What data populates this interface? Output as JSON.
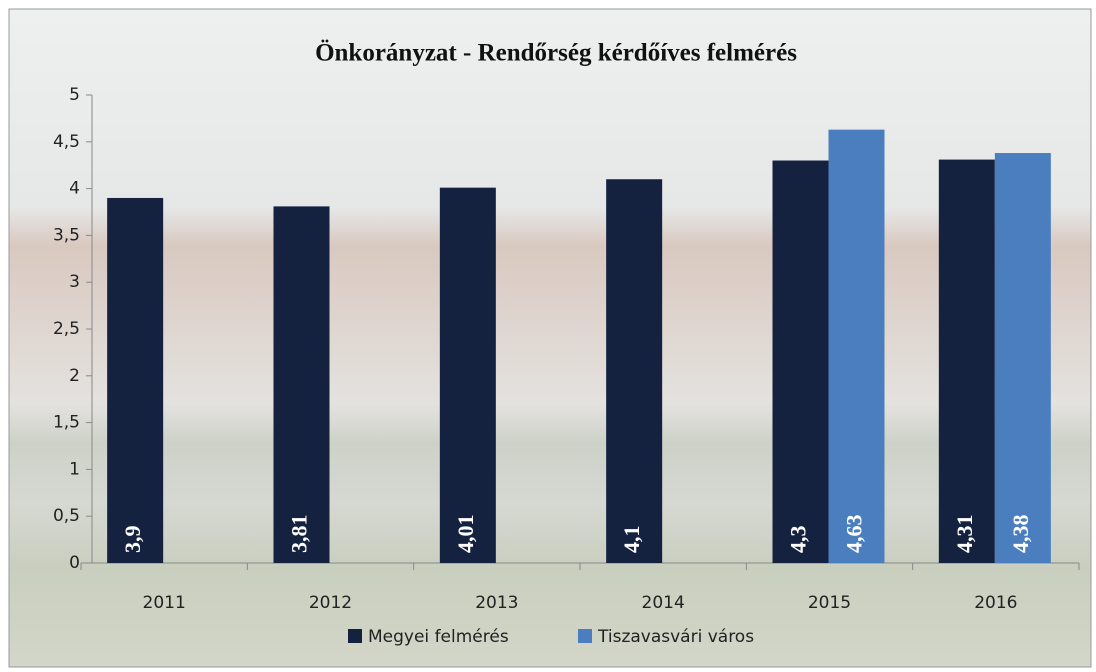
{
  "chart_data": {
    "type": "bar",
    "title": "Önkorányzat - Rendőrség kérdőíves felmérés",
    "categories": [
      "2011",
      "2012",
      "2013",
      "2014",
      "2015",
      "2016"
    ],
    "series": [
      {
        "name": "Megyei felmérés",
        "color": "#14213f",
        "values": [
          3.9,
          3.81,
          4.01,
          4.1,
          4.3,
          4.31
        ],
        "value_labels": [
          "3,9",
          "3,81",
          "4,01",
          "4,1",
          "4,3",
          "4,31"
        ]
      },
      {
        "name": "Tiszavasvári város",
        "color": "#4a7ebf",
        "values": [
          null,
          null,
          null,
          null,
          4.63,
          4.38
        ],
        "value_labels": [
          null,
          null,
          null,
          null,
          "4,63",
          "4,38"
        ]
      }
    ],
    "ylim": [
      0,
      5
    ],
    "yticks": [
      0,
      {
        "value": 0.5,
        "label": "0,5"
      },
      1,
      {
        "value": 1.5,
        "label": "1,5"
      },
      2,
      {
        "value": 2.5,
        "label": "2,5"
      },
      3,
      {
        "value": 3.5,
        "label": "3,5"
      },
      4,
      {
        "value": 4.5,
        "label": "4,5"
      },
      5
    ],
    "legend": "bottom"
  }
}
